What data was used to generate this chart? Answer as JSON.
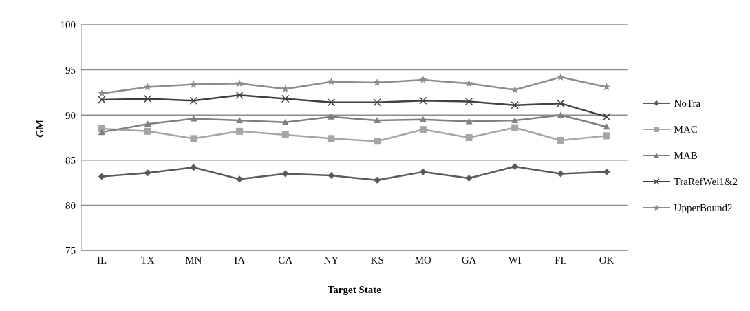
{
  "chart_data": {
    "type": "line",
    "xlabel": "Target State",
    "ylabel": "GM",
    "categories": [
      "IL",
      "TX",
      "MN",
      "IA",
      "CA",
      "NY",
      "KS",
      "MO",
      "GA",
      "WI",
      "FL",
      "OK"
    ],
    "ylim": [
      75,
      100
    ],
    "yticks": [
      75,
      80,
      85,
      90,
      95,
      100
    ],
    "grid": "y",
    "legend": "right",
    "line_style": "solid",
    "series": [
      {
        "name": "NoTra",
        "color": "#595959",
        "marker": "diamond",
        "values": [
          83.2,
          83.6,
          84.2,
          82.9,
          83.5,
          83.3,
          82.8,
          83.7,
          83.0,
          84.3,
          83.5,
          83.7
        ]
      },
      {
        "name": "MAC",
        "color": "#a6a6a6",
        "marker": "square",
        "values": [
          88.5,
          88.2,
          87.4,
          88.2,
          87.8,
          87.4,
          87.1,
          88.4,
          87.5,
          88.6,
          87.2,
          87.7
        ]
      },
      {
        "name": "MAB",
        "color": "#7f7f7f",
        "marker": "triangle",
        "values": [
          88.1,
          89.0,
          89.6,
          89.4,
          89.2,
          89.8,
          89.4,
          89.5,
          89.3,
          89.4,
          90.0,
          88.7
        ]
      },
      {
        "name": "TraRefWei1&2",
        "color": "#404040",
        "marker": "cross",
        "values": [
          91.7,
          91.8,
          91.6,
          92.2,
          91.8,
          91.4,
          91.4,
          91.6,
          91.5,
          91.1,
          91.3,
          89.8
        ]
      },
      {
        "name": "UpperBound2",
        "color": "#8c8c8c",
        "marker": "star",
        "values": [
          92.4,
          93.1,
          93.4,
          93.5,
          92.9,
          93.7,
          93.6,
          93.9,
          93.5,
          92.8,
          94.2,
          93.1
        ]
      }
    ]
  }
}
